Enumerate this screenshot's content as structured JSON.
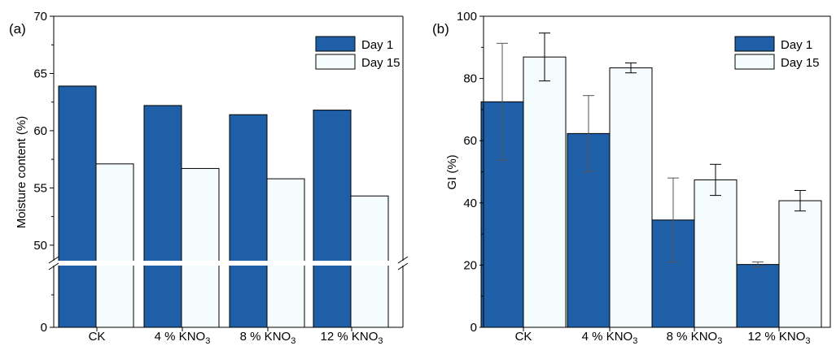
{
  "colors": {
    "day1": "#1f5fa8",
    "day15": "#f4fcfd",
    "error_bar": "#555555",
    "axis": "#000000"
  },
  "chart_data": [
    {
      "type": "bar",
      "panel_label": "(a)",
      "ylabel": "Moisture content  (%)",
      "categories": [
        "CK",
        "4 % KNO",
        "8 % KNO",
        "12 % KNO"
      ],
      "category_subscripts": [
        "",
        "3",
        "3",
        "3"
      ],
      "series": [
        {
          "name": "Day 1",
          "values": [
            63.9,
            62.2,
            61.4,
            61.8
          ]
        },
        {
          "name": "Day 15",
          "values": [
            57.1,
            56.7,
            55.8,
            54.3
          ]
        }
      ],
      "axis_break": {
        "lower_range": [
          0,
          10
        ],
        "upper_range": [
          48.5,
          70
        ]
      },
      "yticks": [
        "0",
        "50",
        "55",
        "60",
        "65",
        "70"
      ],
      "grid": false,
      "legend": "top-right"
    },
    {
      "type": "bar",
      "panel_label": "(b)",
      "ylabel": "GI (%)",
      "categories": [
        "CK",
        "4 % KNO",
        "8 % KNO",
        "12 % KNO"
      ],
      "category_subscripts": [
        "",
        "3",
        "3",
        "3"
      ],
      "series": [
        {
          "name": "Day 1",
          "values": [
            72.5,
            62.3,
            34.5,
            20.2
          ],
          "errors": [
            18.8,
            12.2,
            13.5,
            0.8
          ]
        },
        {
          "name": "Day 15",
          "values": [
            86.9,
            83.4,
            47.4,
            40.7
          ],
          "errors": [
            7.7,
            1.6,
            5.0,
            3.3
          ]
        }
      ],
      "ylim": [
        0,
        100
      ],
      "yticks": [
        "0",
        "20",
        "40",
        "60",
        "80",
        "100"
      ],
      "grid": false,
      "legend": "top-right"
    }
  ]
}
